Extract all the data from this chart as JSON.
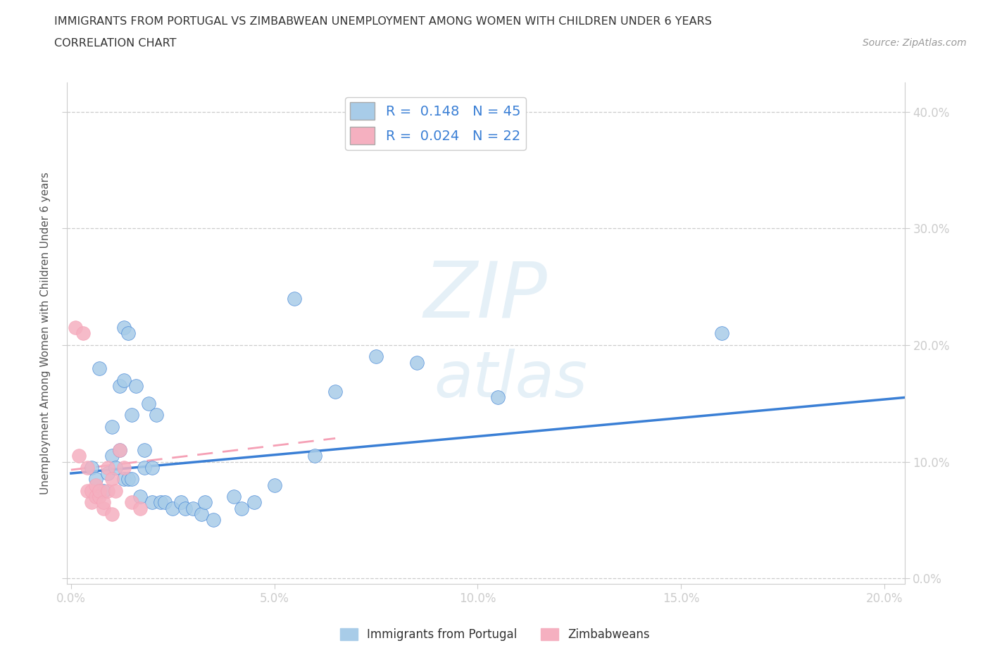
{
  "title_line1": "IMMIGRANTS FROM PORTUGAL VS ZIMBABWEAN UNEMPLOYMENT AMONG WOMEN WITH CHILDREN UNDER 6 YEARS",
  "title_line2": "CORRELATION CHART",
  "source": "Source: ZipAtlas.com",
  "ylabel": "Unemployment Among Women with Children Under 6 years",
  "xlim": [
    -0.001,
    0.205
  ],
  "ylim": [
    -0.005,
    0.425
  ],
  "xticks": [
    0.0,
    0.05,
    0.1,
    0.15,
    0.2
  ],
  "xtick_labels": [
    "0.0%",
    "5.0%",
    "10.0%",
    "15.0%",
    "20.0%"
  ],
  "yticks": [
    0.0,
    0.1,
    0.2,
    0.3,
    0.4
  ],
  "ytick_labels_right": [
    "0.0%",
    "10.0%",
    "20.0%",
    "30.0%",
    "40.0%"
  ],
  "grid_color": "#cccccc",
  "background_color": "#ffffff",
  "blue_scatter_color": "#a8cce8",
  "pink_scatter_color": "#f5b0c0",
  "blue_line_color": "#3a7fd5",
  "pink_line_color": "#f5a0b5",
  "tick_label_color": "#4a90d9",
  "axis_label_color": "#555555",
  "axis_spine_color": "#cccccc",
  "R_blue": "0.148",
  "N_blue": "45",
  "R_pink": "0.024",
  "N_pink": "22",
  "blue_scatter_x": [
    0.005,
    0.006,
    0.007,
    0.008,
    0.009,
    0.01,
    0.01,
    0.011,
    0.012,
    0.012,
    0.013,
    0.013,
    0.013,
    0.014,
    0.014,
    0.015,
    0.015,
    0.016,
    0.017,
    0.018,
    0.018,
    0.019,
    0.02,
    0.02,
    0.021,
    0.022,
    0.023,
    0.025,
    0.027,
    0.028,
    0.03,
    0.032,
    0.033,
    0.035,
    0.04,
    0.042,
    0.045,
    0.05,
    0.055,
    0.06,
    0.065,
    0.075,
    0.085,
    0.105,
    0.16
  ],
  "blue_scatter_y": [
    0.095,
    0.085,
    0.18,
    0.075,
    0.09,
    0.105,
    0.13,
    0.095,
    0.11,
    0.165,
    0.085,
    0.17,
    0.215,
    0.085,
    0.21,
    0.14,
    0.085,
    0.165,
    0.07,
    0.095,
    0.11,
    0.15,
    0.095,
    0.065,
    0.14,
    0.065,
    0.065,
    0.06,
    0.065,
    0.06,
    0.06,
    0.055,
    0.065,
    0.05,
    0.07,
    0.06,
    0.065,
    0.08,
    0.24,
    0.105,
    0.16,
    0.19,
    0.185,
    0.155,
    0.21
  ],
  "pink_scatter_x": [
    0.001,
    0.002,
    0.003,
    0.004,
    0.004,
    0.005,
    0.005,
    0.006,
    0.006,
    0.007,
    0.007,
    0.008,
    0.008,
    0.009,
    0.009,
    0.01,
    0.01,
    0.011,
    0.012,
    0.013,
    0.015,
    0.017
  ],
  "pink_scatter_y": [
    0.215,
    0.105,
    0.21,
    0.075,
    0.095,
    0.065,
    0.075,
    0.07,
    0.08,
    0.07,
    0.075,
    0.06,
    0.065,
    0.095,
    0.075,
    0.085,
    0.055,
    0.075,
    0.11,
    0.095,
    0.065,
    0.06
  ],
  "blue_trend_x0": 0.0,
  "blue_trend_y0": 0.09,
  "blue_trend_x1": 0.205,
  "blue_trend_y1": 0.155,
  "pink_trend_x0": 0.0,
  "pink_trend_y0": 0.093,
  "pink_trend_x1": 0.065,
  "pink_trend_y1": 0.12
}
